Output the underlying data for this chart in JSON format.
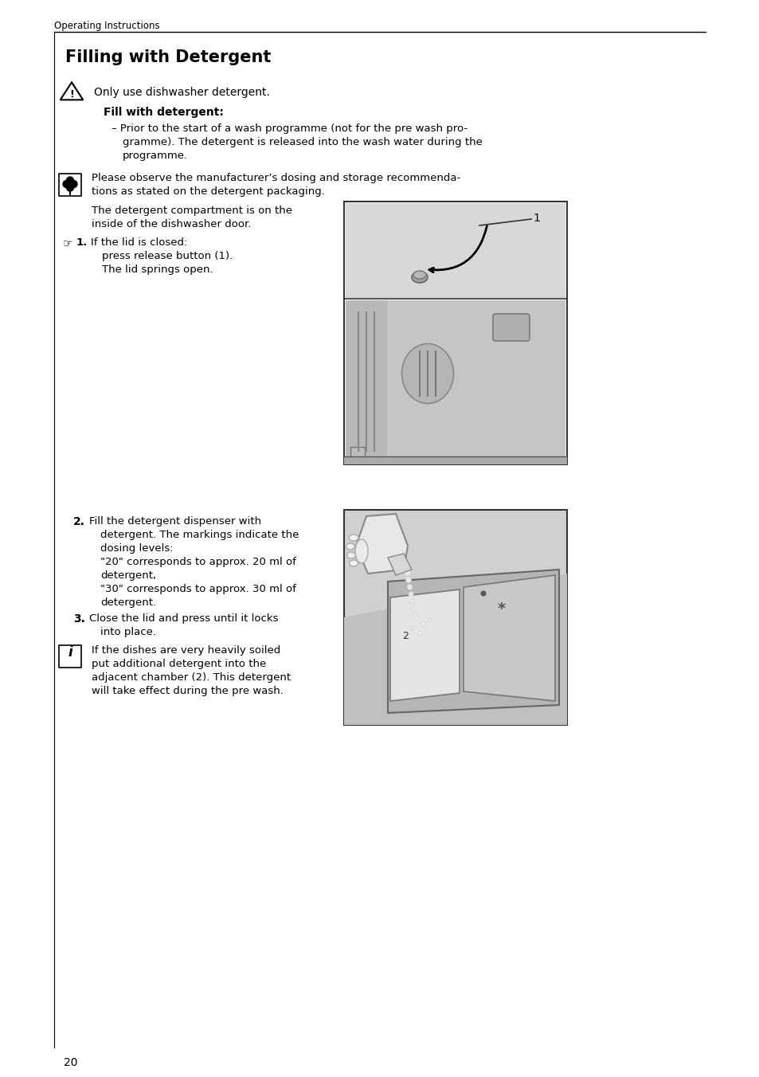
{
  "page_bg": "#ffffff",
  "header_text": "Operating Instructions",
  "title": "Filling with Detergent",
  "page_number": "20",
  "text_color": "#000000",
  "line_color": "#000000",
  "gray_light": "#d4d4d4",
  "gray_mid": "#b8b8b8",
  "gray_dark": "#888888"
}
